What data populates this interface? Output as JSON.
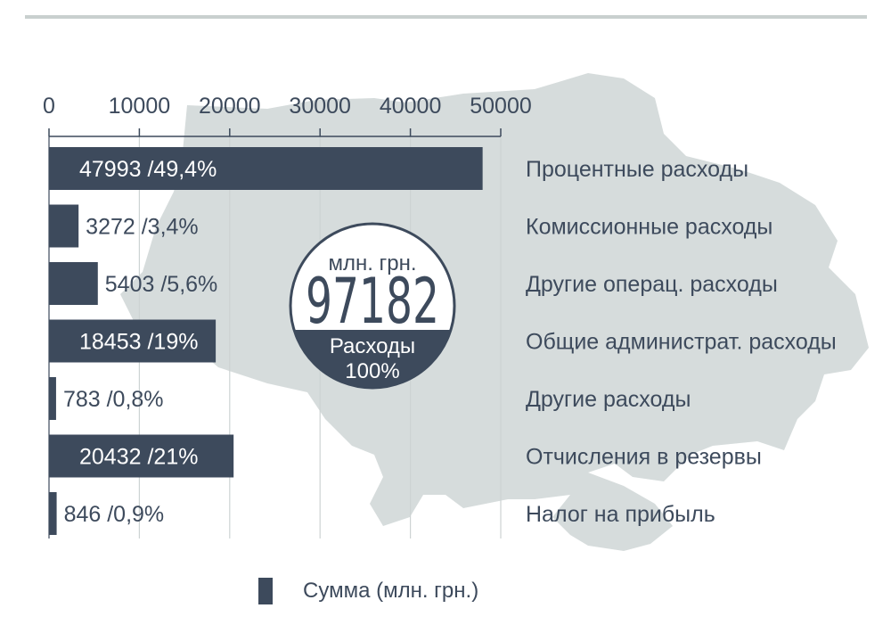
{
  "colors": {
    "bar": "#3d4a5c",
    "map": "#d6dcdc",
    "grid": "#cdd3d3",
    "axis": "#3d4a5c",
    "top_rule": "#c9d0cf",
    "text": "#3d4a5c"
  },
  "background_icon": "ukraine-map",
  "badge": {
    "unit": "млн. грн.",
    "total": "97182",
    "caption": "Расходы",
    "share": "100%"
  },
  "chart_data": {
    "type": "bar",
    "orientation": "horizontal",
    "axis_position": "top",
    "xlim": [
      0,
      50000
    ],
    "ticks": [
      0,
      10000,
      20000,
      30000,
      40000,
      50000
    ],
    "tick_labels": [
      "0",
      "10000",
      "20000",
      "30000",
      "40000",
      "50000"
    ],
    "grid": true,
    "legend_position": "bottom",
    "categories": [
      "Процентные расходы",
      "Комиссионные расходы",
      "Другие операц. расходы",
      "Общие администрат. расходы",
      "Другие расходы",
      "Отчисления в резервы",
      "Налог на прибыль"
    ],
    "series": [
      {
        "name": "Сумма (млн. грн.)",
        "values": [
          47993,
          3272,
          5403,
          18453,
          783,
          20432,
          846
        ],
        "labels": [
          "47993 /49,4%",
          "3272 /3,4%",
          "5403 /5,6%",
          "18453 /19%",
          "783 /0,8%",
          "20432 /21%",
          "846 /0,9%"
        ]
      }
    ]
  }
}
